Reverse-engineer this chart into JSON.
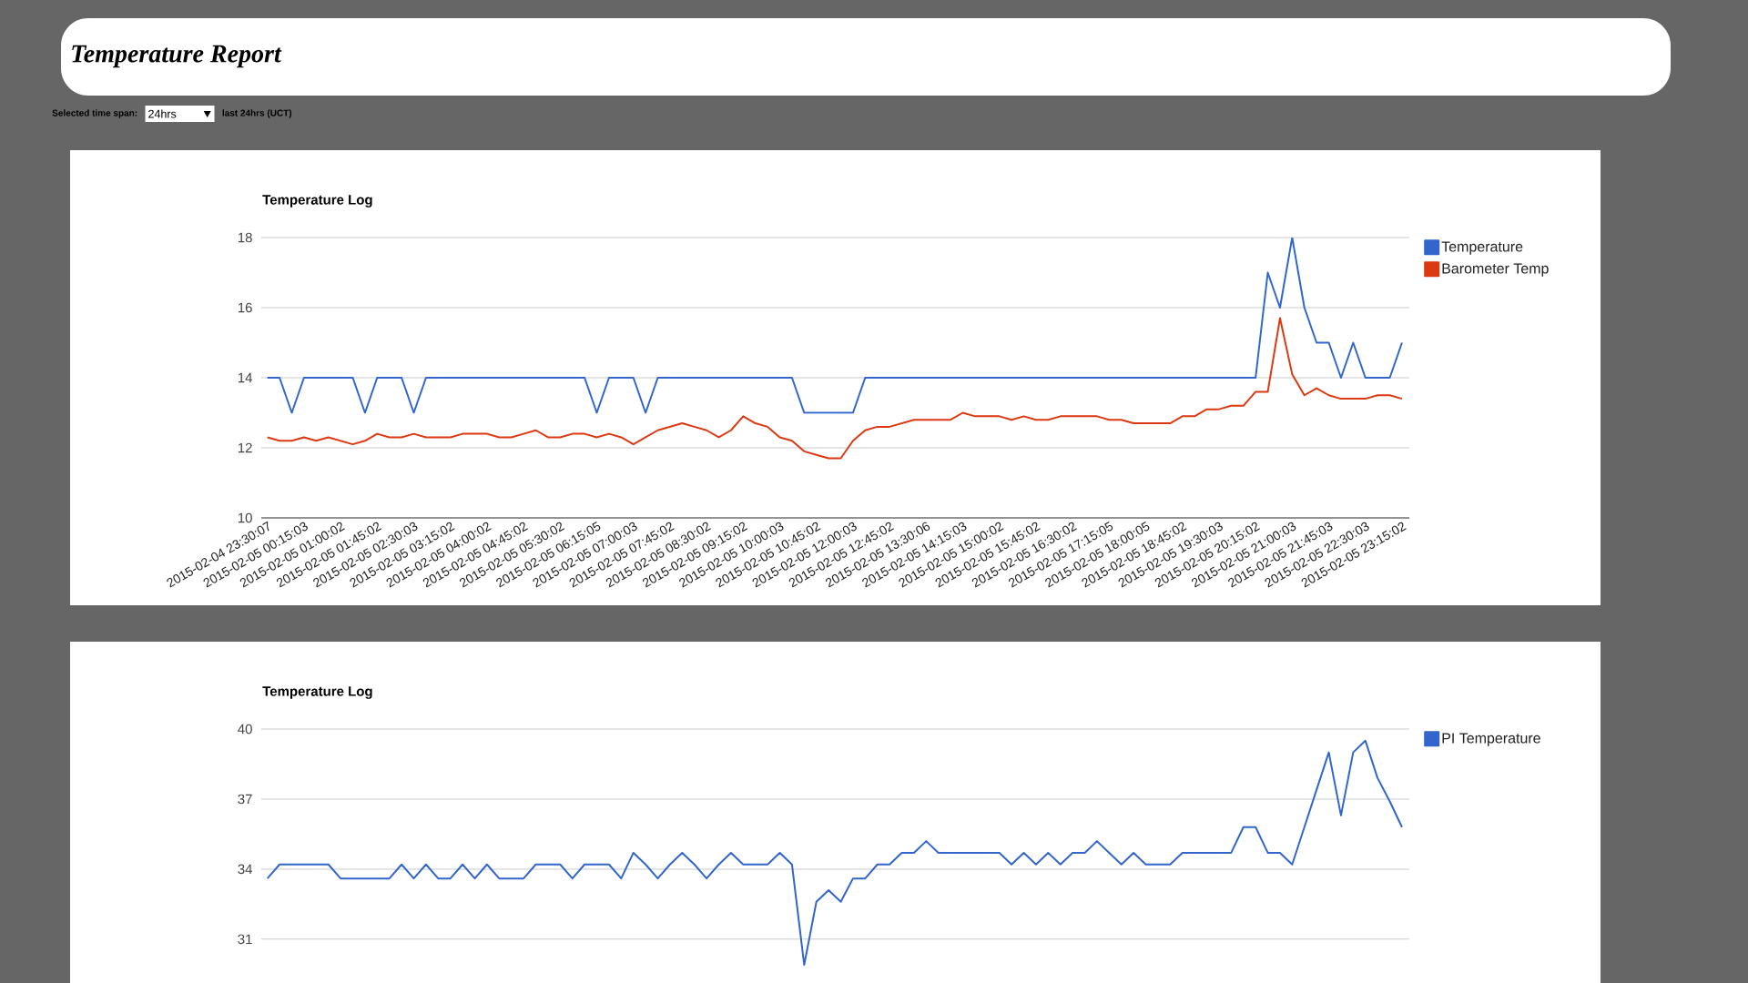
{
  "chart_data": [
    {
      "type": "other",
      "title": "Temperature Report",
      "annotations": [
        "Selected time span:",
        "24hrs",
        "last 24hrs (UCT)"
      ]
    },
    {
      "type": "line",
      "title": "Temperature Log",
      "grid": "y",
      "legend": "right",
      "ylim": [
        10,
        18
      ],
      "yticks": [
        10,
        12,
        14,
        16,
        18
      ],
      "categories": [
        "2015-02-04 23:30:07",
        null,
        null,
        "2015-02-05 00:15:03",
        null,
        null,
        "2015-02-05 01:00:02",
        null,
        null,
        "2015-02-05 01:45:02",
        null,
        null,
        "2015-02-05 02:30:03",
        null,
        null,
        "2015-02-05 03:15:02",
        null,
        null,
        "2015-02-05 04:00:02",
        null,
        null,
        "2015-02-05 04:45:02",
        null,
        null,
        "2015-02-05 05:30:02",
        null,
        null,
        "2015-02-05 06:15:05",
        null,
        null,
        "2015-02-05 07:00:03",
        null,
        null,
        "2015-02-05 07:45:02",
        null,
        null,
        "2015-02-05 08:30:02",
        null,
        null,
        "2015-02-05 09:15:02",
        null,
        null,
        "2015-02-05 10:00:03",
        null,
        null,
        "2015-02-05 10:45:02",
        null,
        null,
        "2015-02-05 12:00:03",
        null,
        null,
        "2015-02-05 12:45:02",
        null,
        null,
        "2015-02-05 13:30:06",
        null,
        null,
        "2015-02-05 14:15:03",
        null,
        null,
        "2015-02-05 15:00:02",
        null,
        null,
        "2015-02-05 15:45:02",
        null,
        null,
        "2015-02-05 16:30:02",
        null,
        null,
        "2015-02-05 17:15:05",
        null,
        null,
        "2015-02-05 18:00:05",
        null,
        null,
        "2015-02-05 18:45:02",
        null,
        null,
        "2015-02-05 19:30:03",
        null,
        null,
        "2015-02-05 20:15:02",
        null,
        null,
        "2015-02-05 21:00:03",
        null,
        null,
        "2015-02-05 21:45:03",
        null,
        null,
        "2015-02-05 22:30:03",
        null,
        null,
        "2015-02-05 23:15:02"
      ],
      "series": [
        {
          "name": "Temperature",
          "color": "#3366cc",
          "values": [
            14,
            14,
            13,
            14,
            14,
            14,
            14,
            14,
            13,
            14,
            14,
            14,
            13,
            14,
            14,
            14,
            14,
            14,
            14,
            14,
            14,
            14,
            14,
            14,
            14,
            14,
            14,
            13,
            14,
            14,
            14,
            13,
            14,
            14,
            14,
            14,
            14,
            14,
            14,
            14,
            14,
            14,
            14,
            14,
            13,
            13,
            13,
            13,
            13,
            14,
            14,
            14,
            14,
            14,
            14,
            14,
            14,
            14,
            14,
            14,
            14,
            14,
            14,
            14,
            14,
            14,
            14,
            14,
            14,
            14,
            14,
            14,
            14,
            14,
            14,
            14,
            14,
            14,
            14,
            14,
            14,
            14,
            17,
            16,
            18,
            16,
            15,
            15,
            14,
            15,
            14,
            14,
            14,
            15
          ]
        },
        {
          "name": "Barometer Temp",
          "color": "#dc3912",
          "values": [
            12.3,
            12.2,
            12.2,
            12.3,
            12.2,
            12.3,
            12.2,
            12.1,
            12.2,
            12.4,
            12.3,
            12.3,
            12.4,
            12.3,
            12.3,
            12.3,
            12.4,
            12.4,
            12.4,
            12.3,
            12.3,
            12.4,
            12.5,
            12.3,
            12.3,
            12.4,
            12.4,
            12.3,
            12.4,
            12.3,
            12.1,
            12.3,
            12.5,
            12.6,
            12.7,
            12.6,
            12.5,
            12.3,
            12.5,
            12.9,
            12.7,
            12.6,
            12.3,
            12.2,
            11.9,
            11.8,
            11.7,
            11.7,
            12.2,
            12.5,
            12.6,
            12.6,
            12.7,
            12.8,
            12.8,
            12.8,
            12.8,
            13.0,
            12.9,
            12.9,
            12.9,
            12.8,
            12.9,
            12.8,
            12.8,
            12.9,
            12.9,
            12.9,
            12.9,
            12.8,
            12.8,
            12.7,
            12.7,
            12.7,
            12.7,
            12.9,
            12.9,
            13.1,
            13.1,
            13.2,
            13.2,
            13.6,
            13.6,
            15.7,
            14.1,
            13.5,
            13.7,
            13.5,
            13.4,
            13.4,
            13.4,
            13.5,
            13.5,
            13.4
          ]
        }
      ]
    },
    {
      "type": "line",
      "title": "Temperature Log",
      "grid": "y",
      "legend": "right",
      "tick_labels": "y",
      "ylim": [
        29.2,
        40
      ],
      "yticks": [
        31,
        34,
        37,
        40
      ],
      "categories": [
        null,
        null,
        null,
        null,
        null,
        null,
        null,
        null,
        null,
        null,
        null,
        null,
        null,
        null,
        null,
        null,
        null,
        null,
        null,
        null,
        null,
        null,
        null,
        null,
        null,
        null,
        null,
        null,
        null,
        null,
        null,
        null,
        null,
        null,
        null,
        null,
        null,
        null,
        null,
        null,
        null,
        null,
        null,
        null,
        null,
        null,
        null,
        null,
        null,
        null,
        null,
        null,
        null,
        null,
        null,
        null,
        null,
        null,
        null,
        null,
        null,
        null,
        null,
        null,
        null,
        null,
        null,
        null,
        null,
        null,
        null,
        null,
        null,
        null,
        null,
        null,
        null,
        null,
        null,
        null,
        null,
        null,
        null,
        null,
        null,
        null,
        null,
        null,
        null,
        null,
        null,
        null,
        null,
        null
      ],
      "series": [
        {
          "name": "PI Temperature",
          "color": "#3366cc",
          "values": [
            33.6,
            34.2,
            34.2,
            34.2,
            34.2,
            34.2,
            33.6,
            33.6,
            33.6,
            33.6,
            33.6,
            34.2,
            33.6,
            34.2,
            33.6,
            33.6,
            34.2,
            33.6,
            34.2,
            33.6,
            33.6,
            33.6,
            34.2,
            34.2,
            34.2,
            33.6,
            34.2,
            34.2,
            34.2,
            33.6,
            34.7,
            34.2,
            33.6,
            34.2,
            34.7,
            34.2,
            33.6,
            34.2,
            34.7,
            34.2,
            34.2,
            34.2,
            34.7,
            34.2,
            29.9,
            32.6,
            33.1,
            32.6,
            33.6,
            33.6,
            34.2,
            34.2,
            34.7,
            34.7,
            35.2,
            34.7,
            34.7,
            34.7,
            34.7,
            34.7,
            34.7,
            34.2,
            34.7,
            34.2,
            34.7,
            34.2,
            34.7,
            34.7,
            35.2,
            34.7,
            34.2,
            34.7,
            34.2,
            34.2,
            34.2,
            34.7,
            34.7,
            34.7,
            34.7,
            34.7,
            35.8,
            35.8,
            34.7,
            34.7,
            34.2,
            35.8,
            37.4,
            39.0,
            36.3,
            39.0,
            39.5,
            37.9,
            36.9,
            35.8
          ]
        }
      ]
    }
  ]
}
